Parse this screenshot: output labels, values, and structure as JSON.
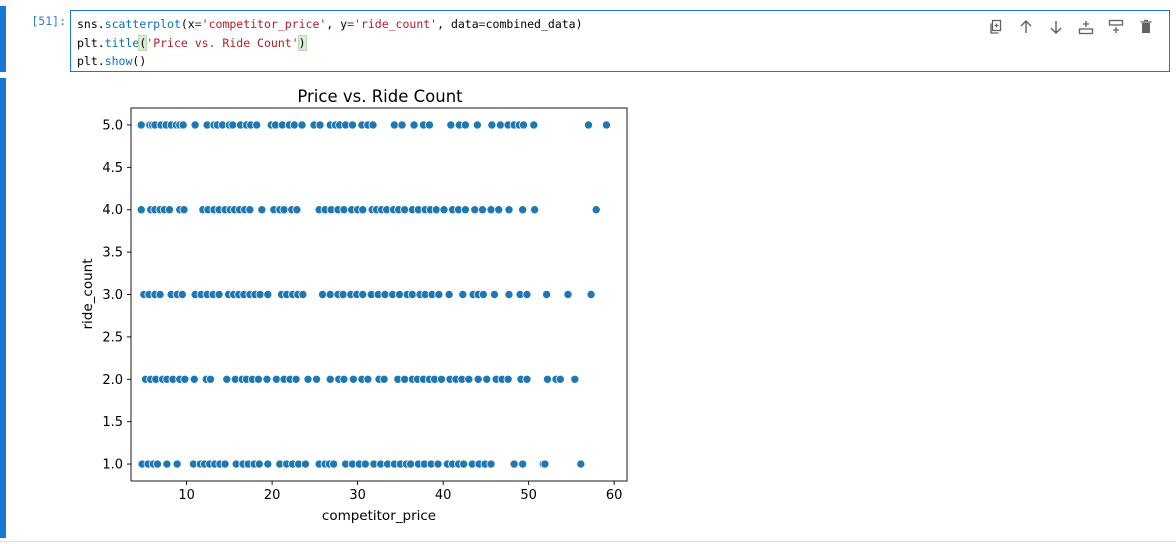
{
  "cell": {
    "prompt": "[51]:",
    "code": {
      "line1": {
        "p1": "sns.",
        "fn": "scatterplot",
        "p2": "(x",
        "eq1": "=",
        "s1": "'competitor_price'",
        "p3": ", y",
        "eq2": "=",
        "s2": "'ride_count'",
        "p4": ", data",
        "eq3": "=",
        "p5": "combined_data)"
      },
      "line2": {
        "p1": "plt.",
        "fn": "title",
        "open": "(",
        "s1": "'Price vs. Ride Count'",
        "close": ")"
      },
      "line3": {
        "p1": "plt.",
        "fn": "show",
        "p2": "()"
      }
    },
    "toolbar": {
      "icons": [
        "duplicate-icon",
        "move-up-icon",
        "move-down-icon",
        "insert-above-icon",
        "insert-below-icon",
        "delete-icon"
      ]
    }
  },
  "chart_data": {
    "type": "scatter",
    "title": "Price vs. Ride Count",
    "xlabel": "competitor_price",
    "ylabel": "ride_count",
    "xlim": [
      3.5,
      61.5
    ],
    "ylim": [
      0.8,
      5.2
    ],
    "xticks": [
      "10",
      "20",
      "30",
      "40",
      "50",
      "60"
    ],
    "yticks": [
      "1.0",
      "1.5",
      "2.0",
      "2.5",
      "3.0",
      "3.5",
      "4.0",
      "4.5",
      "5.0"
    ],
    "color": "#1f77b4",
    "series": [
      {
        "y": 5.0,
        "x": [
          4.7,
          5.7,
          6.0,
          6.3,
          7.0,
          7.6,
          8.2,
          8.8,
          9.2,
          9.6,
          11.0,
          12.4,
          13.2,
          13.6,
          14.2,
          15.0,
          15.4,
          16.3,
          17.0,
          17.5,
          18.2,
          19.9,
          20.4,
          21.2,
          22.0,
          22.6,
          23.5,
          24.9,
          25.6,
          26.8,
          27.4,
          27.9,
          28.6,
          29.4,
          30.5,
          31.2,
          31.8,
          34.3,
          35.2,
          36.6,
          37.7,
          38.4,
          40.9,
          41.9,
          42.6,
          44.0,
          45.7,
          46.7,
          47.6,
          48.3,
          48.9,
          49.4,
          50.6,
          57.0,
          59.1
        ]
      },
      {
        "y": 4.0,
        "x": [
          4.7,
          5.8,
          6.3,
          6.9,
          7.4,
          8.0,
          9.2,
          9.7,
          11.9,
          12.5,
          13.2,
          13.8,
          14.5,
          15.1,
          15.6,
          16.2,
          16.8,
          17.4,
          18.8,
          20.2,
          20.9,
          21.4,
          22.3,
          22.9,
          25.5,
          26.2,
          26.9,
          27.7,
          28.4,
          29.3,
          30.0,
          30.6,
          31.7,
          32.2,
          32.8,
          33.4,
          34.2,
          34.8,
          35.5,
          36.4,
          37.1,
          37.9,
          38.5,
          39.2,
          40.1,
          41.1,
          41.8,
          42.6,
          43.7,
          44.6,
          45.6,
          46.5,
          47.7,
          49.3,
          50.7,
          57.9
        ]
      },
      {
        "y": 3.0,
        "x": [
          5.0,
          5.6,
          6.3,
          6.9,
          8.2,
          8.9,
          9.5,
          11.0,
          11.7,
          12.4,
          13.1,
          13.8,
          14.9,
          15.5,
          16.1,
          16.7,
          17.4,
          18.0,
          18.6,
          19.5,
          21.1,
          21.7,
          22.4,
          23.0,
          23.6,
          25.9,
          26.8,
          27.7,
          28.3,
          29.2,
          29.9,
          30.6,
          31.6,
          32.4,
          33.2,
          34.1,
          34.9,
          35.8,
          36.4,
          37.3,
          37.9,
          38.7,
          39.5,
          40.7,
          42.3,
          43.5,
          44.1,
          44.7,
          46.0,
          47.7,
          49.0,
          49.8,
          52.1,
          54.6,
          57.3
        ]
      },
      {
        "y": 2.0,
        "x": [
          5.2,
          5.8,
          6.4,
          7.2,
          7.7,
          8.4,
          9.2,
          9.8,
          10.9,
          12.3,
          12.8,
          14.7,
          15.7,
          16.5,
          17.0,
          17.7,
          18.4,
          19.4,
          20.5,
          21.4,
          22.1,
          22.8,
          24.2,
          25.2,
          26.8,
          27.8,
          28.4,
          29.5,
          30.5,
          31.2,
          32.5,
          33.1,
          34.7,
          35.5,
          36.4,
          37.0,
          37.7,
          38.4,
          39.0,
          39.8,
          40.8,
          41.5,
          42.2,
          43.0,
          44.1,
          45.1,
          46.2,
          46.9,
          47.6,
          49.1,
          49.8,
          52.2,
          53.2,
          53.7,
          55.4
        ]
      },
      {
        "y": 1.0,
        "x": [
          4.8,
          5.5,
          6.1,
          6.6,
          7.7,
          8.9,
          10.8,
          11.6,
          12.1,
          12.7,
          13.3,
          13.9,
          14.5,
          15.8,
          16.6,
          17.2,
          17.9,
          18.5,
          19.5,
          20.9,
          21.7,
          22.4,
          23.1,
          23.9,
          25.5,
          26.2,
          26.7,
          27.2,
          28.6,
          29.4,
          30.2,
          30.9,
          31.9,
          32.7,
          33.5,
          34.3,
          35.0,
          35.7,
          36.2,
          37.1,
          37.8,
          38.6,
          39.4,
          40.5,
          41.1,
          41.8,
          42.4,
          43.4,
          44.2,
          44.9,
          45.6,
          48.3,
          49.3,
          51.7,
          51.9,
          56.1
        ]
      }
    ]
  }
}
